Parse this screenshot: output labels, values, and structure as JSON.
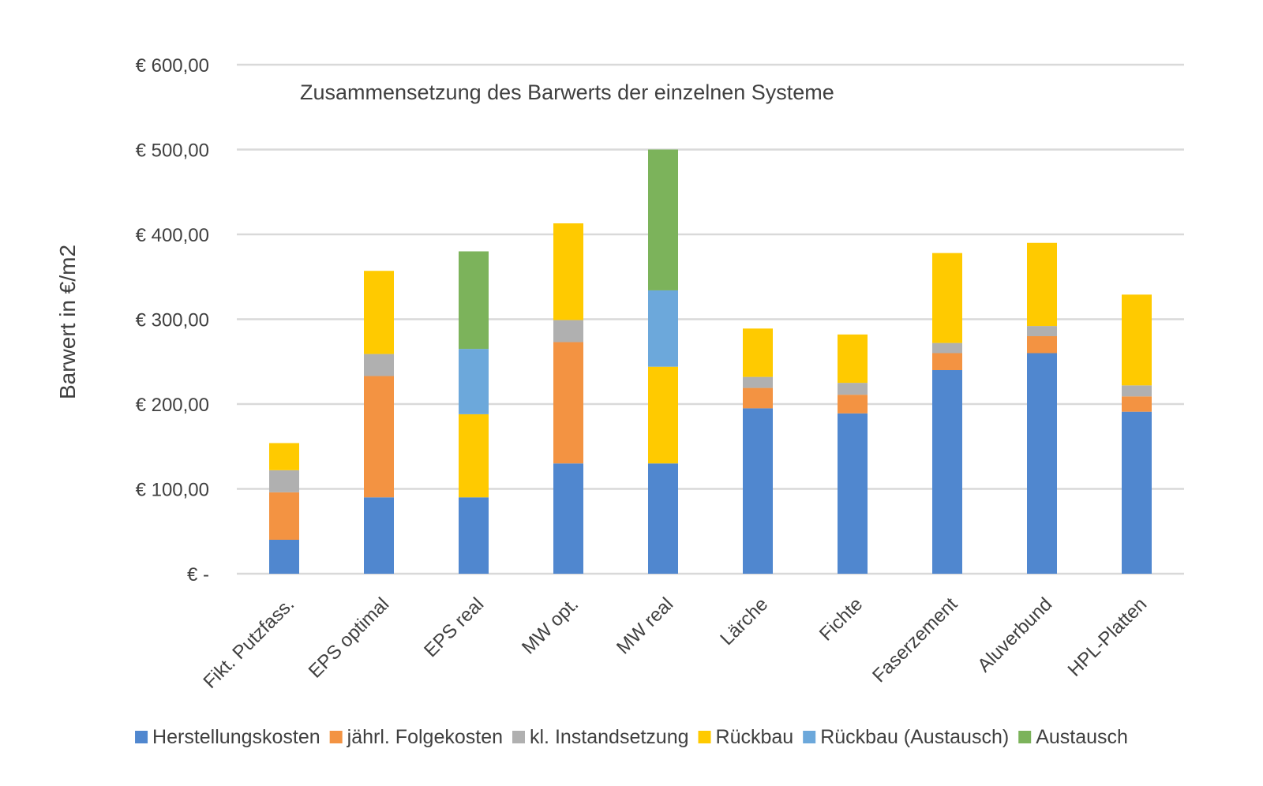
{
  "chart_data": {
    "type": "bar",
    "stacked": true,
    "title": "Zusammensetzung des Barwerts der einzelnen Systeme",
    "xlabel": "",
    "ylabel": "Barwert in €/m2",
    "ylim": [
      0,
      600
    ],
    "yticks": [
      0,
      100,
      200,
      300,
      400,
      500,
      600
    ],
    "ytick_labels": [
      "€ -",
      "€ 100,00",
      "€ 200,00",
      "€ 300,00",
      "€ 400,00",
      "€ 500,00",
      "€ 600,00"
    ],
    "grid": true,
    "legend_position": "bottom",
    "categories": [
      "Fikt. Putzfass.",
      "EPS optimal",
      "EPS real",
      "MW opt.",
      "MW real",
      "Lärche",
      "Fichte",
      "Faserzement",
      "Aluverbund",
      "HPL-Platten"
    ],
    "series": [
      {
        "name": "Herstellungskosten",
        "color": "#5087CF",
        "values": [
          40,
          90,
          90,
          130,
          130,
          195,
          189,
          240,
          260,
          191
        ]
      },
      {
        "name": "jährl. Folgekosten",
        "color": "#F39342",
        "values": [
          56,
          143,
          0,
          143,
          0,
          24,
          22,
          20,
          20,
          18
        ]
      },
      {
        "name": "kl. Instandsetzung",
        "color": "#B0B0B0",
        "values": [
          26,
          26,
          0,
          26,
          0,
          13,
          14,
          12,
          12,
          13
        ]
      },
      {
        "name": "Rückbau",
        "color": "#FFCA00",
        "values": [
          32,
          98,
          98,
          114,
          114,
          57,
          57,
          106,
          98,
          107
        ]
      },
      {
        "name": "Rückbau (Austausch)",
        "color": "#6CA8DB",
        "values": [
          0,
          0,
          77,
          0,
          90,
          0,
          0,
          0,
          0,
          0
        ]
      },
      {
        "name": "Austausch",
        "color": "#7CB35B",
        "values": [
          0,
          0,
          115,
          0,
          166,
          0,
          0,
          0,
          0,
          0
        ]
      }
    ]
  }
}
